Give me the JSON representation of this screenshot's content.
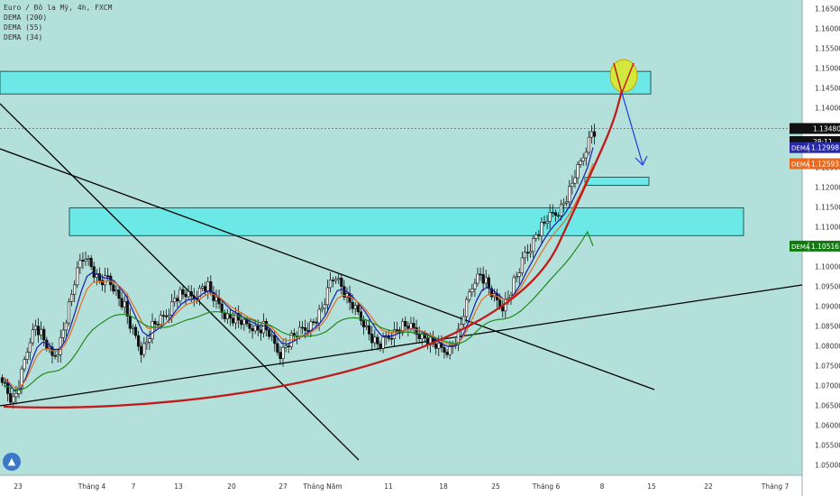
{
  "legend": {
    "symbol": "Euro / Đô la Mỹ, 4h, FXCM",
    "ind1": "DEMA (200)",
    "ind2": "DEMA (55)",
    "ind3": "DEMA (34)"
  },
  "colors": {
    "background": "#b3e0da",
    "zone": "#6ce8e6",
    "candle": "#111111",
    "dema200": "#1f8a1f",
    "dema55": "#e86a1e",
    "dema34": "#1a1aa8",
    "curve": "#c01c1c",
    "arrow": "#1c3cd8",
    "target": "#d2e83c"
  },
  "price_axis": {
    "ticks": [
      "1.16500",
      "1.16000",
      "1.15500",
      "1.15000",
      "1.14500",
      "1.14000",
      "1.13500",
      "1.13000",
      "1.12500",
      "1.12000",
      "1.11500",
      "1.11000",
      "1.10500",
      "1.10000",
      "1.09500",
      "1.09000",
      "1.08500",
      "1.08000",
      "1.07500",
      "1.07000",
      "1.06500",
      "1.06000",
      "1.05500",
      "1.05000"
    ],
    "last_price": "1.13480",
    "countdown": "28:11",
    "dema34_value": "1.12998",
    "dema55_value": "1.12593",
    "dema200_value": "1.10516",
    "dema_tag": "DEMA"
  },
  "time_axis": {
    "labels": [
      "23",
      "Tháng 4",
      "7",
      "13",
      "20",
      "27",
      "Tháng Năm",
      "11",
      "18",
      "25",
      "Tháng 6",
      "8",
      "15",
      "22",
      "Tháng 7"
    ]
  },
  "chart_data": {
    "type": "candlestick",
    "title": "Euro / Đô la Mỹ, 4h, FXCM",
    "ylim": [
      1.048,
      1.168
    ],
    "x_range": [
      "23",
      "Tháng 7"
    ],
    "grid": false,
    "close_series": [
      1.072,
      1.068,
      1.066,
      1.07,
      1.076,
      1.082,
      1.085,
      1.083,
      1.08,
      1.077,
      1.079,
      1.084,
      1.09,
      1.096,
      1.101,
      1.103,
      1.1,
      1.097,
      1.096,
      1.097,
      1.095,
      1.092,
      1.09,
      1.085,
      1.082,
      1.079,
      1.081,
      1.085,
      1.086,
      1.087,
      1.089,
      1.092,
      1.093,
      1.093,
      1.092,
      1.093,
      1.095,
      1.095,
      1.092,
      1.09,
      1.088,
      1.087,
      1.087,
      1.086,
      1.085,
      1.085,
      1.084,
      1.085,
      1.083,
      1.08,
      1.078,
      1.08,
      1.082,
      1.083,
      1.084,
      1.085,
      1.086,
      1.088,
      1.091,
      1.096,
      1.098,
      1.095,
      1.092,
      1.09,
      1.088,
      1.086,
      1.083,
      1.081,
      1.08,
      1.082,
      1.083,
      1.084,
      1.085,
      1.085,
      1.084,
      1.083,
      1.082,
      1.081,
      1.08,
      1.079,
      1.079,
      1.08,
      1.083,
      1.088,
      1.093,
      1.097,
      1.098,
      1.096,
      1.093,
      1.091,
      1.09,
      1.092,
      1.096,
      1.099,
      1.103,
      1.105,
      1.108,
      1.11,
      1.112,
      1.113,
      1.114,
      1.116,
      1.119,
      1.123,
      1.126,
      1.13,
      1.134
    ],
    "series": [
      {
        "name": "DEMA (200)",
        "last_value": 1.10516
      },
      {
        "name": "DEMA (55)",
        "last_value": 1.12593
      },
      {
        "name": "DEMA (34)",
        "last_value": 1.12998
      }
    ],
    "zones": [
      {
        "from": 1.1435,
        "to": 1.1492
      },
      {
        "from": 1.1205,
        "to": 1.1225
      },
      {
        "from": 1.1078,
        "to": 1.1148
      }
    ]
  }
}
